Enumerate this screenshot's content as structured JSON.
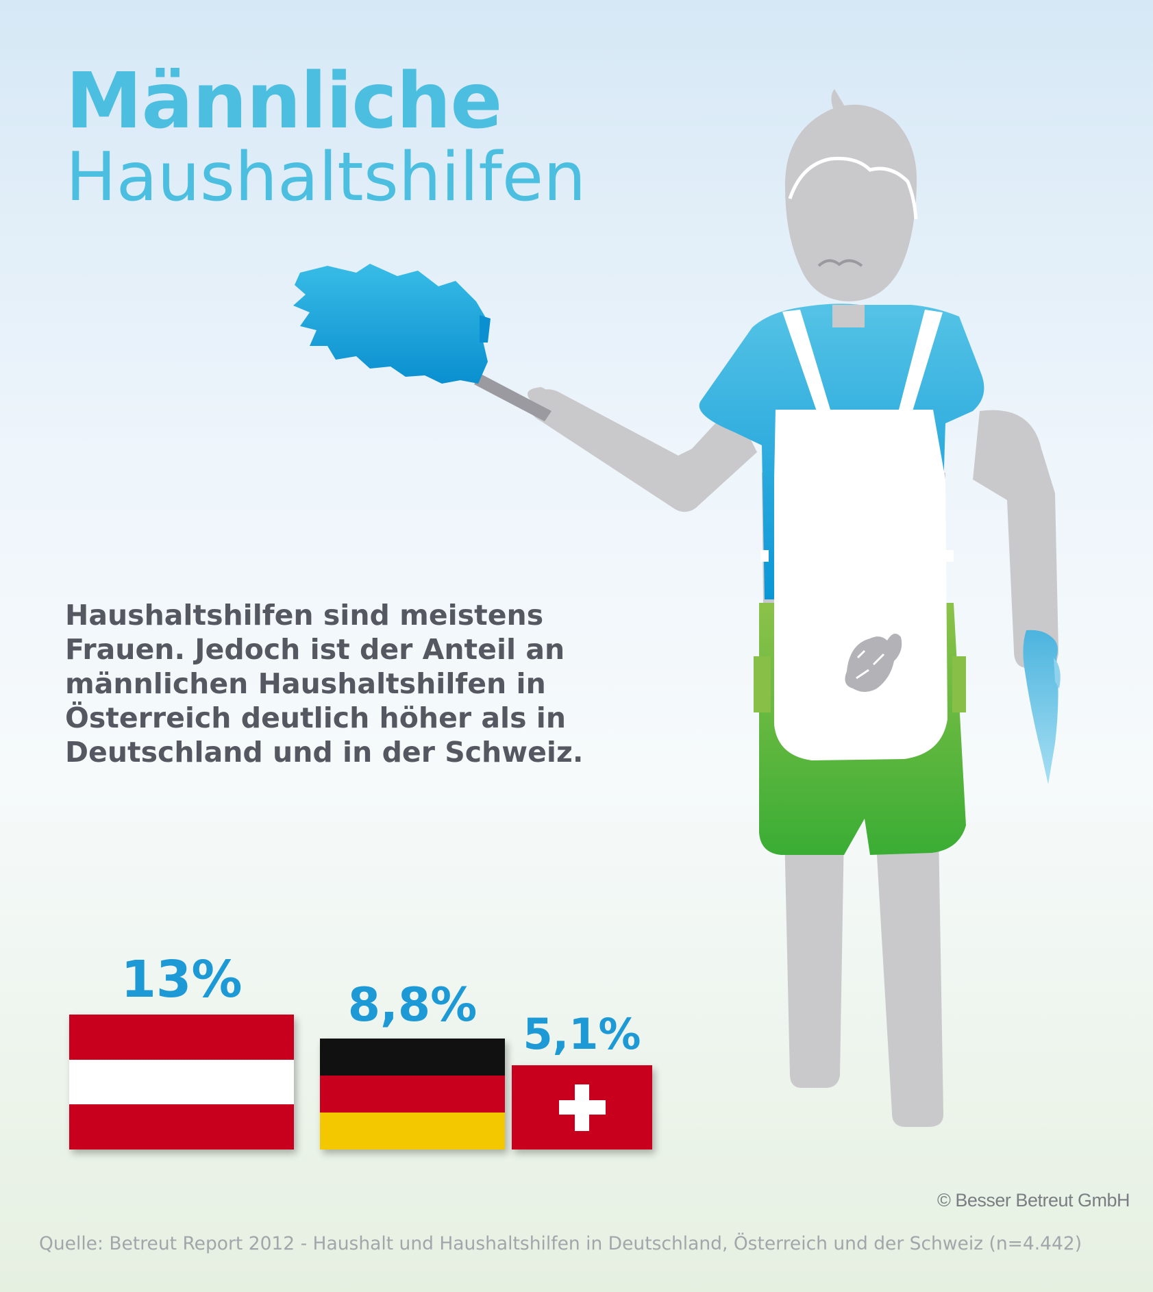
{
  "title": {
    "line1": "Männliche",
    "line2": "Haushaltshilfen"
  },
  "description": [
    "Haushaltshilfen sind meistens",
    "Frauen. Jedoch ist der Anteil an",
    "männlichen Haushaltshilfen in",
    "Österreich deutlich höher als in",
    "Deutschland und in der Schweiz."
  ],
  "chart_data": {
    "type": "bar",
    "categories": [
      "Österreich",
      "Deutschland",
      "Schweiz"
    ],
    "values": [
      13,
      8.8,
      5.1
    ],
    "value_labels": [
      "13%",
      "8,8%",
      "5,1%"
    ],
    "title": "",
    "xlabel": "",
    "ylabel": ""
  },
  "colors": {
    "title": "#4cbfe0",
    "value": "#1d9ad6",
    "text": "#555860",
    "flag_red": "#c8001e",
    "flag_black": "#111111",
    "flag_gold": "#f4c800",
    "shirt": "#1aa3dc",
    "shorts": "#52b848",
    "skin": "#c8c8cb"
  },
  "copyright": "© Besser Betreut GmbH",
  "source": "Quelle: Betreut Report 2012 - Haushalt und Haushaltshilfen in Deutschland, Österreich und der Schweiz (n=4.442)"
}
